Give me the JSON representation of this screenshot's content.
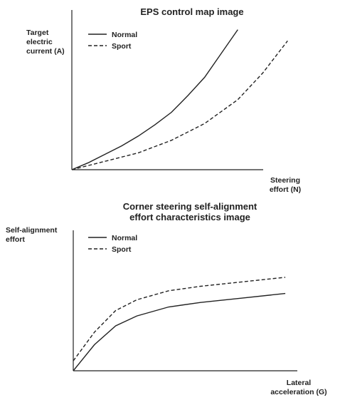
{
  "chart_data": [
    {
      "type": "line",
      "title": "EPS control map image",
      "ylabel": [
        "Target",
        "electric",
        "current (A)"
      ],
      "xlabel": [
        "Steering",
        "effort (N)"
      ],
      "legend": "top-left",
      "grid": false,
      "series": [
        {
          "name": "Normal",
          "style": "solid",
          "x": [
            0.0,
            0.1,
            0.2,
            0.3,
            0.4,
            0.5,
            0.6,
            0.7,
            0.8,
            0.9,
            1.0
          ],
          "y": [
            0.0,
            0.05,
            0.11,
            0.17,
            0.24,
            0.32,
            0.41,
            0.53,
            0.66,
            0.83,
            1.0
          ]
        },
        {
          "name": "Sport",
          "style": "dashed",
          "x": [
            0.0,
            0.2,
            0.4,
            0.6,
            0.8,
            1.0,
            1.15,
            1.3
          ],
          "y": [
            0.0,
            0.06,
            0.12,
            0.21,
            0.33,
            0.5,
            0.69,
            0.92
          ]
        }
      ],
      "xlim": [
        0,
        1.5
      ],
      "ylim": [
        0,
        1.12
      ]
    },
    {
      "type": "line",
      "title": [
        "Corner steering self-alignment",
        "effort characteristics image"
      ],
      "ylabel": [
        "Self-alignment",
        "effort"
      ],
      "xlabel": [
        "Lateral",
        "acceleration (G)"
      ],
      "legend": "top-left",
      "grid": false,
      "series": [
        {
          "name": "Normal",
          "style": "solid",
          "x": [
            0.0,
            0.1,
            0.2,
            0.3,
            0.45,
            0.6,
            0.8,
            1.0
          ],
          "y": [
            0.0,
            0.29,
            0.5,
            0.61,
            0.71,
            0.76,
            0.81,
            0.86
          ]
        },
        {
          "name": "Sport",
          "style": "dashed",
          "x": [
            0.0,
            0.1,
            0.2,
            0.3,
            0.45,
            0.6,
            0.8,
            1.0
          ],
          "y": [
            0.11,
            0.43,
            0.67,
            0.79,
            0.89,
            0.94,
            0.99,
            1.04
          ]
        }
      ],
      "xlim": [
        0,
        1.05
      ],
      "ylim": [
        0,
        1.19
      ]
    }
  ]
}
